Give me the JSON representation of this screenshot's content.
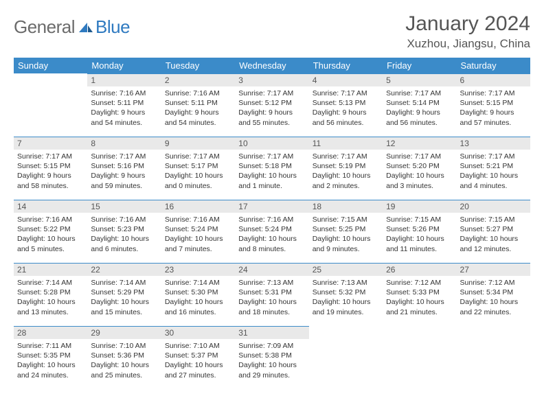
{
  "brand": {
    "general": "General",
    "blue": "Blue"
  },
  "title": "January 2024",
  "location": "Xuzhou, Jiangsu, China",
  "colors": {
    "header_bg": "#3b8bc9",
    "header_text": "#ffffff",
    "daynum_bg": "#e9e9e9",
    "daynum_border": "#3b8bc9",
    "body_text": "#333333",
    "title_text": "#555555",
    "logo_gray": "#6b6b6b",
    "logo_blue": "#2f7ac0"
  },
  "weekdays": [
    "Sunday",
    "Monday",
    "Tuesday",
    "Wednesday",
    "Thursday",
    "Friday",
    "Saturday"
  ],
  "weeks": [
    [
      null,
      {
        "n": "1",
        "sr": "7:16 AM",
        "ss": "5:11 PM",
        "d1": "9 hours",
        "d2": "and 54 minutes."
      },
      {
        "n": "2",
        "sr": "7:16 AM",
        "ss": "5:11 PM",
        "d1": "9 hours",
        "d2": "and 54 minutes."
      },
      {
        "n": "3",
        "sr": "7:17 AM",
        "ss": "5:12 PM",
        "d1": "9 hours",
        "d2": "and 55 minutes."
      },
      {
        "n": "4",
        "sr": "7:17 AM",
        "ss": "5:13 PM",
        "d1": "9 hours",
        "d2": "and 56 minutes."
      },
      {
        "n": "5",
        "sr": "7:17 AM",
        "ss": "5:14 PM",
        "d1": "9 hours",
        "d2": "and 56 minutes."
      },
      {
        "n": "6",
        "sr": "7:17 AM",
        "ss": "5:15 PM",
        "d1": "9 hours",
        "d2": "and 57 minutes."
      }
    ],
    [
      {
        "n": "7",
        "sr": "7:17 AM",
        "ss": "5:15 PM",
        "d1": "9 hours",
        "d2": "and 58 minutes."
      },
      {
        "n": "8",
        "sr": "7:17 AM",
        "ss": "5:16 PM",
        "d1": "9 hours",
        "d2": "and 59 minutes."
      },
      {
        "n": "9",
        "sr": "7:17 AM",
        "ss": "5:17 PM",
        "d1": "10 hours",
        "d2": "and 0 minutes."
      },
      {
        "n": "10",
        "sr": "7:17 AM",
        "ss": "5:18 PM",
        "d1": "10 hours",
        "d2": "and 1 minute."
      },
      {
        "n": "11",
        "sr": "7:17 AM",
        "ss": "5:19 PM",
        "d1": "10 hours",
        "d2": "and 2 minutes."
      },
      {
        "n": "12",
        "sr": "7:17 AM",
        "ss": "5:20 PM",
        "d1": "10 hours",
        "d2": "and 3 minutes."
      },
      {
        "n": "13",
        "sr": "7:17 AM",
        "ss": "5:21 PM",
        "d1": "10 hours",
        "d2": "and 4 minutes."
      }
    ],
    [
      {
        "n": "14",
        "sr": "7:16 AM",
        "ss": "5:22 PM",
        "d1": "10 hours",
        "d2": "and 5 minutes."
      },
      {
        "n": "15",
        "sr": "7:16 AM",
        "ss": "5:23 PM",
        "d1": "10 hours",
        "d2": "and 6 minutes."
      },
      {
        "n": "16",
        "sr": "7:16 AM",
        "ss": "5:24 PM",
        "d1": "10 hours",
        "d2": "and 7 minutes."
      },
      {
        "n": "17",
        "sr": "7:16 AM",
        "ss": "5:24 PM",
        "d1": "10 hours",
        "d2": "and 8 minutes."
      },
      {
        "n": "18",
        "sr": "7:15 AM",
        "ss": "5:25 PM",
        "d1": "10 hours",
        "d2": "and 9 minutes."
      },
      {
        "n": "19",
        "sr": "7:15 AM",
        "ss": "5:26 PM",
        "d1": "10 hours",
        "d2": "and 11 minutes."
      },
      {
        "n": "20",
        "sr": "7:15 AM",
        "ss": "5:27 PM",
        "d1": "10 hours",
        "d2": "and 12 minutes."
      }
    ],
    [
      {
        "n": "21",
        "sr": "7:14 AM",
        "ss": "5:28 PM",
        "d1": "10 hours",
        "d2": "and 13 minutes."
      },
      {
        "n": "22",
        "sr": "7:14 AM",
        "ss": "5:29 PM",
        "d1": "10 hours",
        "d2": "and 15 minutes."
      },
      {
        "n": "23",
        "sr": "7:14 AM",
        "ss": "5:30 PM",
        "d1": "10 hours",
        "d2": "and 16 minutes."
      },
      {
        "n": "24",
        "sr": "7:13 AM",
        "ss": "5:31 PM",
        "d1": "10 hours",
        "d2": "and 18 minutes."
      },
      {
        "n": "25",
        "sr": "7:13 AM",
        "ss": "5:32 PM",
        "d1": "10 hours",
        "d2": "and 19 minutes."
      },
      {
        "n": "26",
        "sr": "7:12 AM",
        "ss": "5:33 PM",
        "d1": "10 hours",
        "d2": "and 21 minutes."
      },
      {
        "n": "27",
        "sr": "7:12 AM",
        "ss": "5:34 PM",
        "d1": "10 hours",
        "d2": "and 22 minutes."
      }
    ],
    [
      {
        "n": "28",
        "sr": "7:11 AM",
        "ss": "5:35 PM",
        "d1": "10 hours",
        "d2": "and 24 minutes."
      },
      {
        "n": "29",
        "sr": "7:10 AM",
        "ss": "5:36 PM",
        "d1": "10 hours",
        "d2": "and 25 minutes."
      },
      {
        "n": "30",
        "sr": "7:10 AM",
        "ss": "5:37 PM",
        "d1": "10 hours",
        "d2": "and 27 minutes."
      },
      {
        "n": "31",
        "sr": "7:09 AM",
        "ss": "5:38 PM",
        "d1": "10 hours",
        "d2": "and 29 minutes."
      },
      null,
      null,
      null
    ]
  ],
  "labels": {
    "sunrise": "Sunrise:",
    "sunset": "Sunset:",
    "daylight": "Daylight:"
  }
}
